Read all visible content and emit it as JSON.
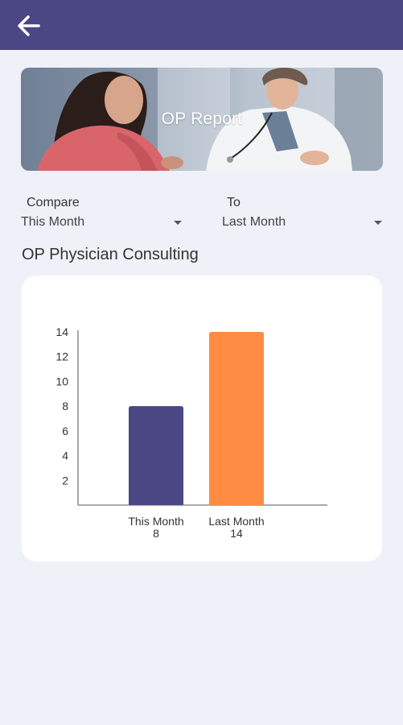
{
  "appbar": {
    "back_icon": "arrow-left-icon",
    "color": "#4a4784"
  },
  "banner": {
    "title": "OP Report"
  },
  "compare": {
    "label": "Compare",
    "value": "This Month"
  },
  "to": {
    "label": "To",
    "value": "Last Month"
  },
  "section_title": "OP Physician Consulting",
  "chart_data": {
    "type": "bar",
    "categories": [
      "This Month",
      "Last Month"
    ],
    "values": [
      8,
      14
    ],
    "value_labels": [
      "8",
      "14"
    ],
    "colors": [
      "#4a4784",
      "#ff8c42"
    ],
    "yticks": [
      2,
      4,
      6,
      8,
      10,
      12,
      14
    ],
    "ylim": [
      0,
      14
    ],
    "title": "",
    "xlabel": "",
    "ylabel": "",
    "grid": false
  }
}
